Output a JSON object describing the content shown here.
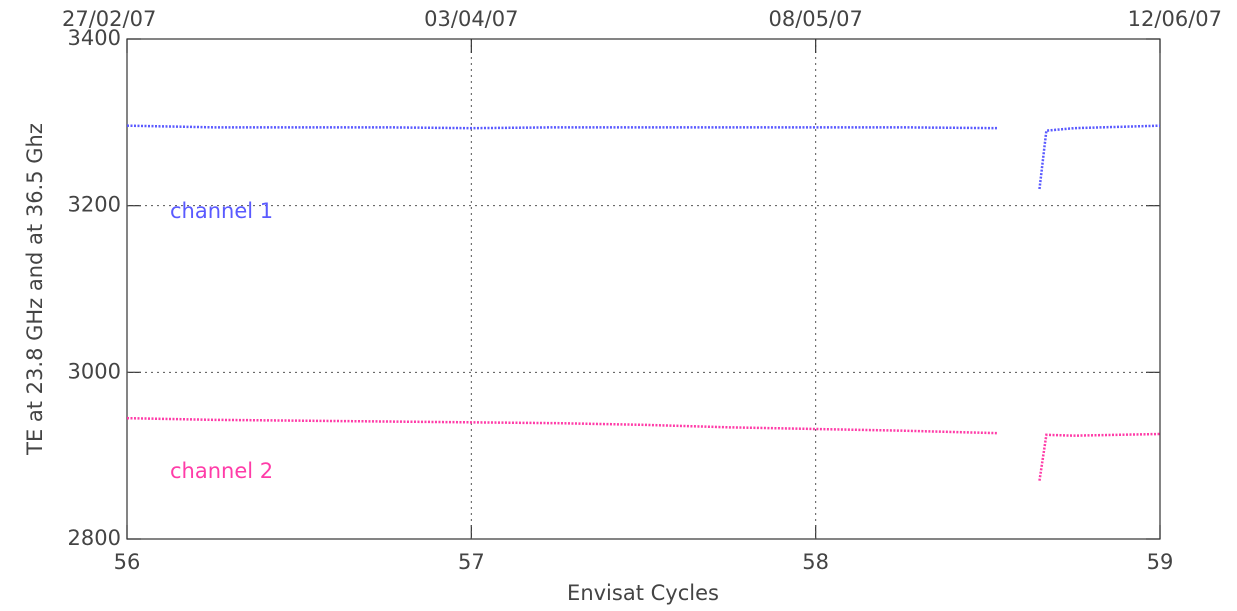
{
  "chart_data": {
    "type": "line",
    "x_label": "Envisat Cycles",
    "y_label": "TE at 23.8 GHz and at 36.5 Ghz",
    "xlim": [
      56,
      59
    ],
    "xticks": [
      56,
      57,
      58,
      59
    ],
    "top_ticks": [
      {
        "value": 56,
        "label": "27/02/07"
      },
      {
        "value": 57,
        "label": "03/04/07"
      },
      {
        "value": 58,
        "label": "08/05/07"
      },
      {
        "value": 59,
        "label": "12/06/07"
      }
    ],
    "ylim": [
      2800,
      3400
    ],
    "yticks": [
      2800,
      3000,
      3200,
      3400
    ],
    "grid": true,
    "x": [
      56,
      56.25,
      56.5,
      56.75,
      57,
      57.25,
      57.5,
      57.75,
      58,
      58.25,
      58.53,
      58.6,
      58.65,
      58.67,
      58.75,
      59
    ],
    "series": [
      {
        "name": "channel 1",
        "color": "#5a5aff",
        "values": [
          3296,
          3294,
          3294,
          3294,
          3293,
          3294,
          3294,
          3294,
          3294,
          3294,
          3293,
          null,
          3220,
          3290,
          3293,
          3296
        ]
      },
      {
        "name": "channel 2",
        "color": "#ff3ca8",
        "values": [
          2945,
          2943,
          2942,
          2941,
          2940,
          2939,
          2937,
          2934,
          2932,
          2930,
          2927,
          null,
          2870,
          2925,
          2924,
          2926
        ]
      }
    ]
  }
}
